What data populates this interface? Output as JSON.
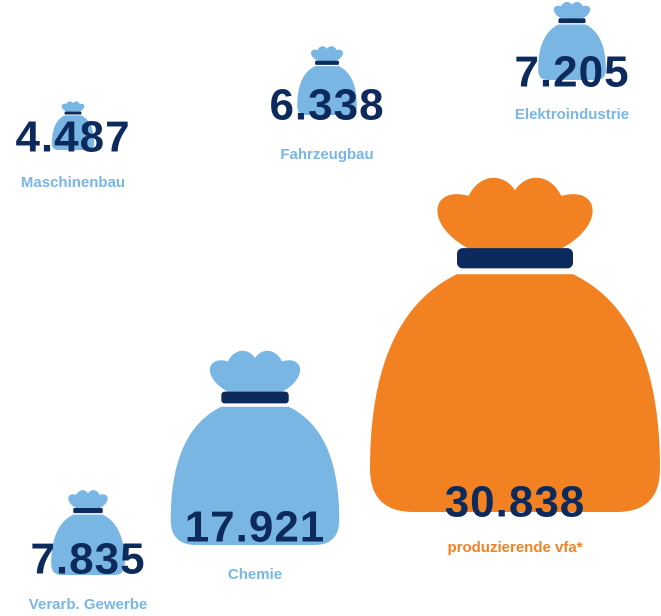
{
  "chart_data": {
    "type": "pictogram",
    "categories": [
      "Maschinenbau",
      "Fahrzeugbau",
      "Elektroindustrie",
      "Verarb. Gewerbe",
      "Chemie",
      "produzierende vfa*"
    ],
    "values": [
      4487,
      6338,
      7205,
      7835,
      17921,
      30838
    ],
    "value_labels": [
      "4.487",
      "6.338",
      "7.205",
      "7.835",
      "17.921",
      "30.838"
    ],
    "colors": [
      "#7ab6e4",
      "#7ab6e4",
      "#7ab6e4",
      "#7ab6e4",
      "#7ab6e4",
      "#f28121"
    ]
  }
}
